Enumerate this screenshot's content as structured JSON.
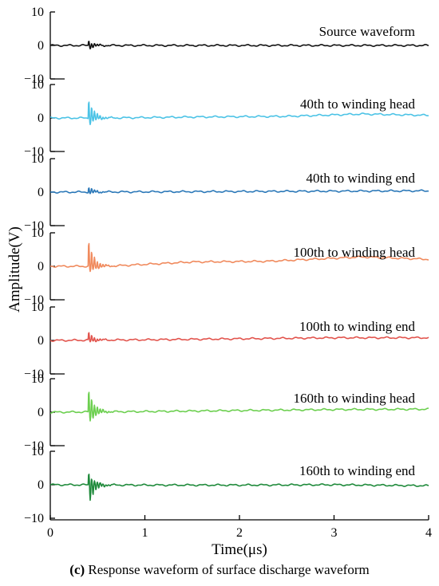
{
  "chart_data": {
    "type": "line",
    "ylabel": "Amplitude(V)",
    "xlabel": "Time(μs)",
    "xlim": [
      0,
      4
    ],
    "ylim": [
      -10,
      10
    ],
    "x_ticks": [
      "0",
      "1",
      "2",
      "3",
      "4"
    ],
    "y_ticks": [
      "10",
      "0",
      "−10"
    ],
    "series": [
      {
        "name": "Source waveform",
        "color": "#111111",
        "peak": 1.5,
        "trough": -1.2,
        "baseline": [
          [
            0,
            0
          ],
          [
            4,
            0
          ]
        ]
      },
      {
        "name": "40th to winding head",
        "color": "#4cc3e6",
        "peak": 6.0,
        "trough": -2.5,
        "baseline": [
          [
            0,
            0
          ],
          [
            0.6,
            0
          ],
          [
            1.5,
            0.3
          ],
          [
            2.5,
            0.5
          ],
          [
            3.3,
            1.2
          ],
          [
            4,
            0.8
          ]
        ]
      },
      {
        "name": "40th to winding end",
        "color": "#2b78b8",
        "peak": 1.6,
        "trough": -0.8,
        "baseline": [
          [
            0,
            0
          ],
          [
            1,
            0.1
          ],
          [
            2,
            0.2
          ],
          [
            3,
            0.3
          ],
          [
            4,
            0.4
          ]
        ]
      },
      {
        "name": "100th to winding head",
        "color": "#f08a5d",
        "peak": 8.0,
        "trough": -2.5,
        "baseline": [
          [
            0,
            0
          ],
          [
            0.6,
            0
          ],
          [
            1.5,
            1.3
          ],
          [
            2.3,
            1.5
          ],
          [
            3.3,
            2.8
          ],
          [
            4,
            2.1
          ]
        ]
      },
      {
        "name": "100th to winding end",
        "color": "#e2544d",
        "peak": 2.5,
        "trough": -0.8,
        "baseline": [
          [
            0,
            0
          ],
          [
            1,
            0.2
          ],
          [
            2,
            0.5
          ],
          [
            3,
            0.8
          ],
          [
            4,
            0.8
          ]
        ]
      },
      {
        "name": "160th to winding head",
        "color": "#6ccf4f",
        "peak": 7.0,
        "trough": -4.0,
        "baseline": [
          [
            0,
            0
          ],
          [
            1,
            0.2
          ],
          [
            2,
            0.5
          ],
          [
            3,
            0.8
          ],
          [
            4,
            0.9
          ]
        ]
      },
      {
        "name": "160th to winding end",
        "color": "#1f8a3b",
        "peak": 3.8,
        "trough": -6.5,
        "baseline": [
          [
            0,
            0
          ],
          [
            1,
            -0.1
          ],
          [
            2,
            -0.1
          ],
          [
            3,
            0
          ],
          [
            4,
            -0.3
          ]
        ]
      }
    ]
  },
  "caption": {
    "letter": "(c)",
    "text": "Response waveform of surface discharge waveform"
  }
}
